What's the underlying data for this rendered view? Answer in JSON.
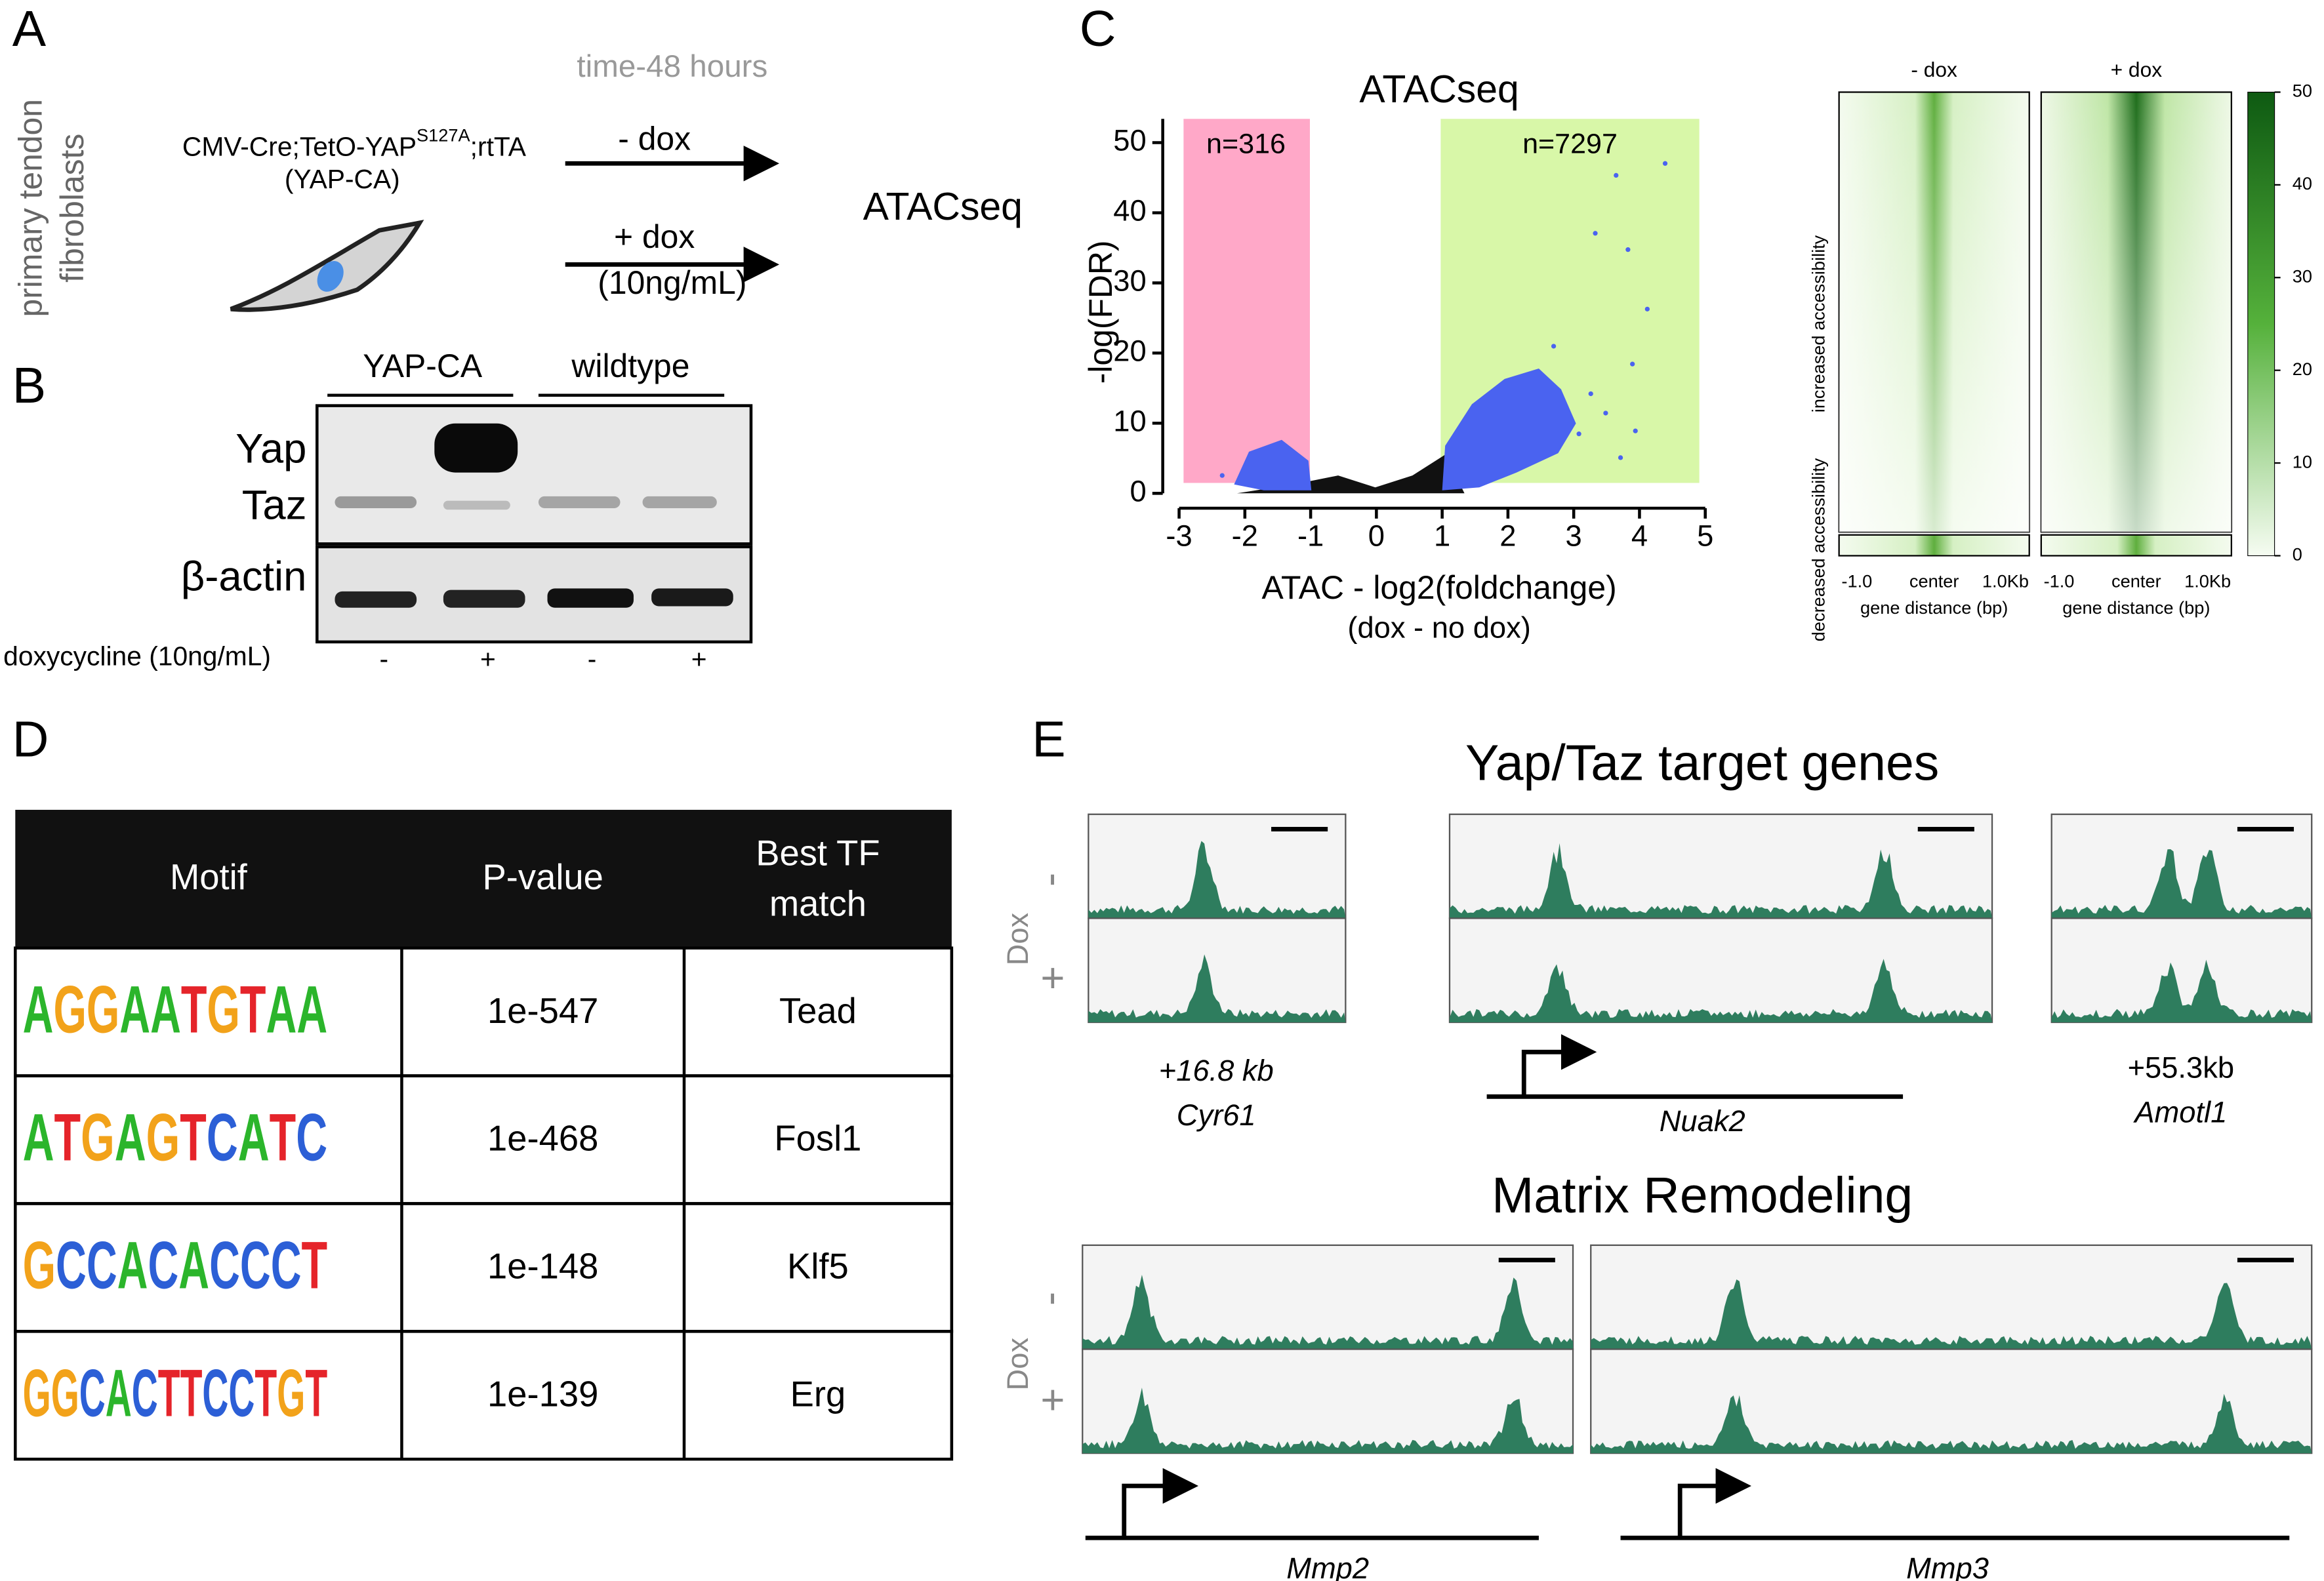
{
  "panels": {
    "a": "A",
    "b": "B",
    "c": "C",
    "d": "D",
    "e": "E"
  },
  "panel_a": {
    "side_label": [
      "primary tendon",
      "fibroblasts"
    ],
    "genotype": "CMV-Cre;TetO-YAP",
    "genotype_superscript": "S127A",
    "genotype_end": ";rtTA",
    "genotype_alias": "(YAP-CA)",
    "time": "time-48 hours",
    "minus_dox": "- dox",
    "plus_dox": "+ dox",
    "dose": "(10ng/mL)",
    "assay": "ATACseq"
  },
  "panel_b": {
    "groups": [
      "YAP-CA",
      "wildtype"
    ],
    "bands": [
      "Yap",
      "Taz",
      "β-actin"
    ],
    "treatment_label": "doxycycline (10ng/mL)",
    "treatments": [
      "-",
      "+",
      "-",
      "+"
    ]
  },
  "panel_c": {
    "title": "ATACseq",
    "x_label": "ATAC - log2(foldchange)",
    "x_sublabel": "(dox - no dox)",
    "y_label": "-log(FDR)",
    "xticks": [
      -3,
      -2,
      -1,
      0,
      1,
      2,
      3,
      4,
      5
    ],
    "yticks": [
      0,
      10,
      20,
      30,
      40,
      50
    ],
    "down_count": "n=316",
    "up_count": "n=7297",
    "heatmap": {
      "columns": [
        "- dox",
        "+ dox"
      ],
      "row_labels": [
        "decreased accessibility",
        "increased accessibility"
      ],
      "x_ticks": [
        "-1.0",
        "center",
        "1.0Kb"
      ],
      "x_label": "gene distance (bp)",
      "colorbar_ticks": [
        0,
        10,
        20,
        30,
        40,
        50
      ]
    }
  },
  "panel_d": {
    "table": {
      "header": [
        "Motif",
        "P-value",
        [
          "Best TF",
          "match"
        ]
      ],
      "rows": [
        [
          "AGGAATGTAA",
          "1e-547",
          "Tead"
        ],
        [
          "ATGAGTCATC",
          "1e-468",
          "Fosl1"
        ],
        [
          "GCCACACCCT",
          "1e-148",
          "Klf5"
        ],
        [
          "GGCACTTCCTGT",
          "1e-139",
          "Erg"
        ]
      ]
    }
  },
  "panel_e": {
    "section_1": "Yap/Taz target genes",
    "section_2": "Matrix Remodeling",
    "dox": "Dox",
    "minus": "-",
    "plus": "+",
    "tracks": [
      {
        "position": "+16.8 kb",
        "gene": "Cyr61"
      },
      {
        "gene": "Nuak2"
      },
      {
        "position": "+55.3kb",
        "gene": "Amotl1"
      },
      {
        "gene": "Mmp2"
      },
      {
        "gene": "Mmp3"
      }
    ]
  }
}
